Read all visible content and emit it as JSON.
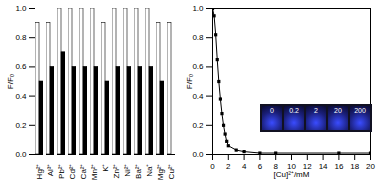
{
  "chart_data": [
    {
      "type": "bar",
      "y_label": "F/F₀",
      "categories": [
        "Hg²⁺",
        "Al³⁺",
        "Pb²⁺",
        "Cd²⁺",
        "Ca²⁺",
        "Mn²⁺",
        "K⁺",
        "Zn²⁺",
        "Ni²⁺",
        "Ba²⁺",
        "Na⁺",
        "Mg²⁺",
        "Cu²⁺"
      ],
      "series": [
        {
          "color": "#ffffff",
          "values": [
            0.9,
            0.9,
            1.0,
            1.0,
            1.0,
            1.0,
            0.9,
            1.0,
            1.0,
            1.0,
            1.0,
            0.9,
            0.9
          ]
        },
        {
          "color": "#000000",
          "values": [
            0.5,
            0.6,
            0.7,
            0.6,
            0.6,
            0.6,
            0.5,
            0.6,
            0.6,
            0.6,
            0.6,
            0.5,
            0.0
          ]
        }
      ],
      "ylim": [
        0,
        1.0
      ],
      "yticks": [
        {
          "value": 0,
          "label": "0.0"
        },
        {
          "value": 0.2,
          "label": "0.2"
        },
        {
          "value": 0.4,
          "label": "0.4"
        },
        {
          "value": 0.6,
          "label": "0.6"
        },
        {
          "value": 0.8,
          "label": "0.8"
        },
        {
          "value": 1.0,
          "label": "1.0"
        }
      ]
    },
    {
      "type": "line",
      "x_label": "[Cu]²⁺/mM",
      "y_label": "F/F₀",
      "x": [
        0,
        0.2,
        0.4,
        0.6,
        0.8,
        1,
        1.2,
        1.4,
        1.6,
        1.8,
        2,
        3,
        4,
        6,
        8,
        16,
        20
      ],
      "values": [
        1.0,
        0.95,
        0.82,
        0.65,
        0.5,
        0.38,
        0.28,
        0.2,
        0.14,
        0.09,
        0.06,
        0.03,
        0.02,
        0.01,
        0.01,
        0.01,
        0.01
      ],
      "color": "#000000",
      "marker": "square",
      "xlim": [
        0,
        20
      ],
      "xticks": [
        0,
        2,
        4,
        6,
        8,
        10,
        12,
        14,
        16,
        18,
        20
      ],
      "ylim": [
        0,
        1.0
      ],
      "yticks": [
        {
          "value": 0,
          "label": "0.0"
        },
        {
          "value": 0.2,
          "label": "0.2"
        },
        {
          "value": 0.4,
          "label": "0.4"
        },
        {
          "value": 0.6,
          "label": "0.6"
        },
        {
          "value": 0.8,
          "label": "0.8"
        },
        {
          "value": 1.0,
          "label": "1.0"
        }
      ],
      "inset_labels": [
        "0",
        "0.2",
        "2",
        "20",
        "200"
      ]
    }
  ]
}
